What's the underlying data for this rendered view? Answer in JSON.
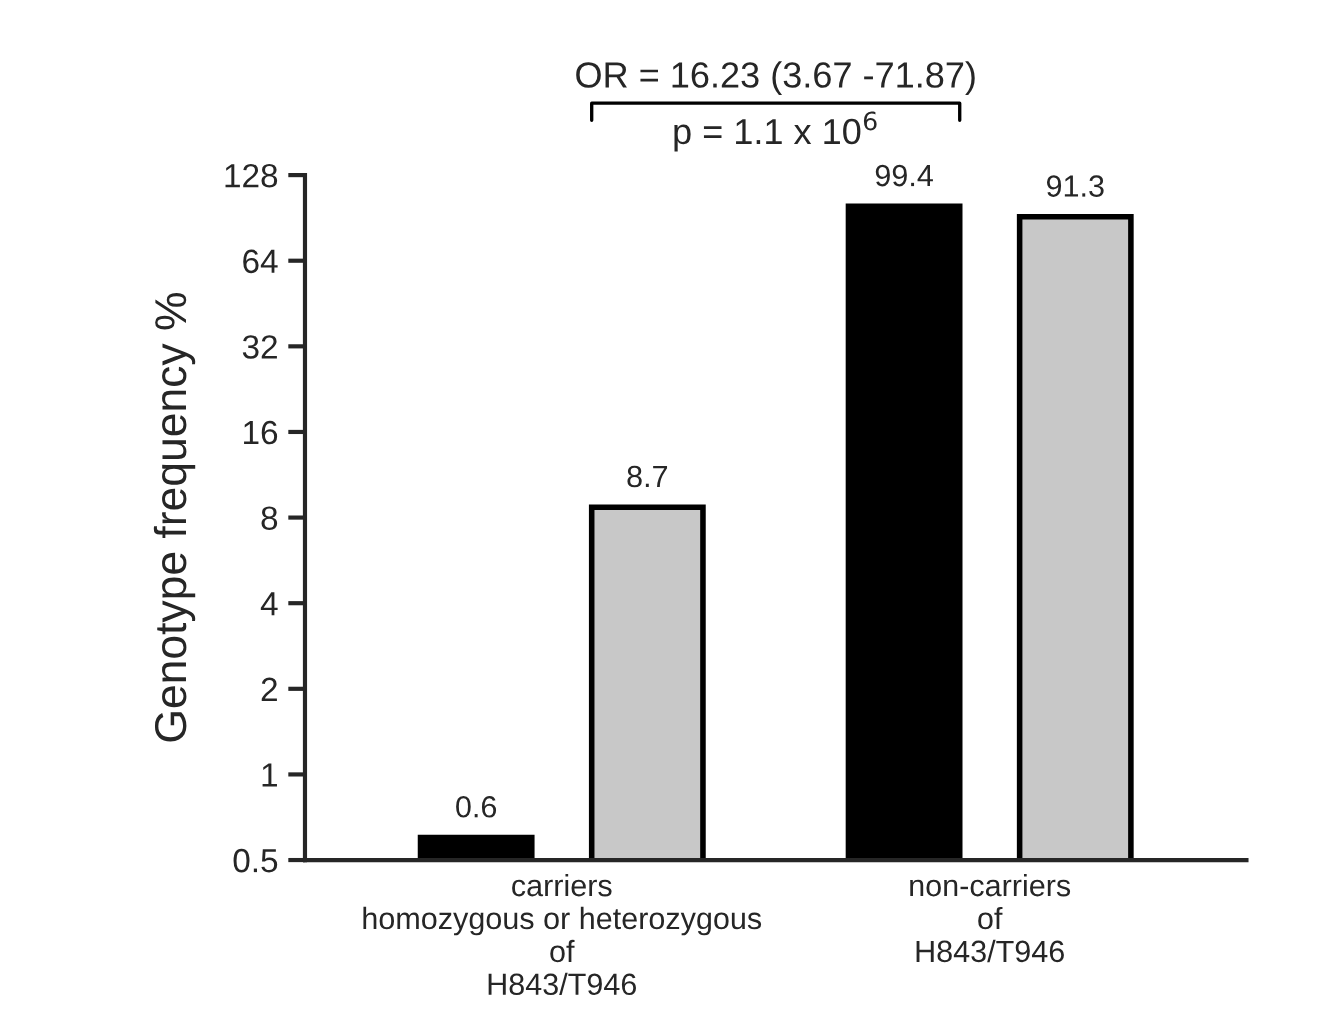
{
  "chart_data": {
    "type": "bar",
    "ylabel": "Genotype frequency %",
    "categories": [
      "carriers\nhomozygous or heterozygous\nof\nH843/T946",
      "non-carriers\nof\nH843/T946"
    ],
    "series": [
      {
        "color": "#000000",
        "values": [
          0.6,
          99.4
        ]
      },
      {
        "color": "#c8c8c8",
        "values": [
          8.7,
          91.3
        ]
      }
    ],
    "log": "y",
    "ylim": [
      0.5,
      128
    ],
    "yticks": [
      0.5,
      1,
      2,
      4,
      8,
      16,
      32,
      64,
      128
    ],
    "data_labels": true,
    "grid": false,
    "annotations": [
      "OR = 16.23 (3.67 -71.87)",
      "p = 1.1 x 10$^{6}$"
    ]
  }
}
